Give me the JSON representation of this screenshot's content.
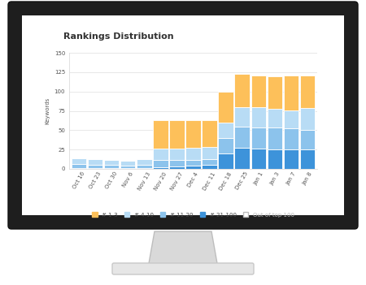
{
  "chart_data": {
    "type": "bar",
    "title": "Rankings Distribution",
    "y_label": "Keywords",
    "categories": [
      "Oct 16",
      "Oct 23",
      "Oct 30",
      "Nov 6",
      "Nov 13",
      "Nov 20",
      "Nov 27",
      "Dec 4",
      "Dec 11",
      "Dec 18",
      "Dec 25",
      "Jan 1",
      "Jan 3",
      "Jan 7",
      "Jan 8"
    ],
    "series": [
      {
        "name": "# 1-3",
        "color": "#fdc05a",
        "values": [
          0,
          0,
          0,
          0,
          0,
          37,
          37,
          36,
          35,
          40,
          43,
          41,
          42,
          45,
          42
        ]
      },
      {
        "name": "# 4-10",
        "color": "#b8dcf5",
        "values": [
          8,
          8,
          7,
          7,
          8,
          14,
          14,
          15,
          15,
          20,
          25,
          26,
          25,
          24,
          29
        ]
      },
      {
        "name": "# 11-20",
        "color": "#8cc3ec",
        "values": [
          5,
          4,
          4,
          3,
          4,
          10,
          9,
          8,
          8,
          20,
          28,
          28,
          28,
          27,
          25
        ]
      },
      {
        "name": "# 21-100",
        "color": "#3d93da",
        "values": [
          1,
          1,
          1,
          1,
          1,
          2,
          3,
          4,
          5,
          20,
          27,
          26,
          25,
          25,
          25
        ]
      },
      {
        "name": "Out of top 100",
        "color": "#ffffff",
        "values": [
          null,
          null,
          null,
          null,
          null,
          null,
          null,
          null,
          null,
          null,
          null,
          null,
          null,
          null,
          null
        ]
      }
    ],
    "stacked": true,
    "legend": "bottom",
    "grid": true,
    "ylim": [
      0,
      150
    ],
    "yticks": [
      0,
      25,
      50,
      75,
      100,
      125,
      150
    ]
  }
}
